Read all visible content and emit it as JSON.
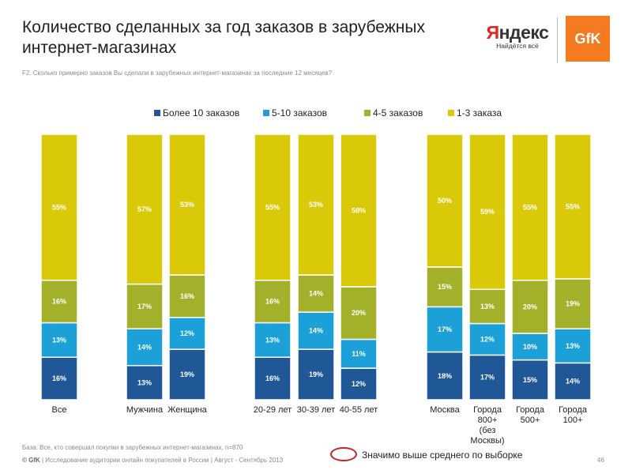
{
  "header": {
    "title": "Количество сделанных за год заказов в зарубежных интернет-магазинах",
    "subtitle": "F2. Сколько примерно заказов Вы сделали в зарубежных интернет-магазинах за последние 12 месяцев?"
  },
  "logos": {
    "yandex_first": "Я",
    "yandex_rest": "ндекс",
    "yandex_tagline": "Найдётся всё",
    "gfk": "GfK"
  },
  "colors": {
    "more_than_10": "#1f5797",
    "5_10": "#1ba0d8",
    "4_5": "#a3b02a",
    "1_3": "#d9c908",
    "significance_oval": "#c0282a"
  },
  "chart_data": {
    "type": "bar",
    "stacked": true,
    "percent_stacked": true,
    "legend_position": "top",
    "categories": [
      "Все",
      "Мужчина",
      "Женщина",
      "20-29 лет",
      "30-39 лет",
      "40-55 лет",
      "Москва",
      "Города 800+ (без Москвы)",
      "Города 500+",
      "Города 100+"
    ],
    "series": [
      {
        "name": "Более 10 заказов",
        "values": [
          16,
          13,
          19,
          16,
          19,
          12,
          18,
          17,
          15,
          14
        ],
        "labels": [
          "16%",
          "13%",
          "19%",
          "16%",
          "19%",
          "12%",
          "18%",
          "17%",
          "15%",
          "14%"
        ]
      },
      {
        "name": "5-10 заказов",
        "values": [
          13,
          14,
          12,
          13,
          14,
          11,
          17,
          12,
          10,
          13
        ],
        "labels": [
          "13%",
          "14%",
          "12%",
          "13%",
          "14%",
          "11%",
          "17%",
          "12%",
          "10%",
          "13%"
        ]
      },
      {
        "name": "4-5 заказов",
        "values": [
          16,
          17,
          16,
          16,
          14,
          20,
          15,
          13,
          20,
          19
        ],
        "labels": [
          "16%",
          "17%",
          "16%",
          "16%",
          "14%",
          "20%",
          "15%",
          "13%",
          "20%",
          "19%"
        ]
      },
      {
        "name": "1-3 заказа",
        "values": [
          55,
          57,
          53,
          55,
          53,
          58,
          50,
          59,
          55,
          55
        ],
        "labels": [
          "55%",
          "57%",
          "53%",
          "55%",
          "53%",
          "58%",
          "50%",
          "59%",
          "55%",
          "55%"
        ]
      }
    ]
  },
  "footer": {
    "base_note": "База: Все, кто совершал покупки в зарубежных интернет-магазинах, n=870",
    "copyright_prefix": "© GfK",
    "copyright_rest": " | Исследование аудитории онлайн покупателей в России | Август - Сентябрь 2013",
    "significance_note": "Значимо выше среднего по выборке",
    "page_number": "46"
  }
}
